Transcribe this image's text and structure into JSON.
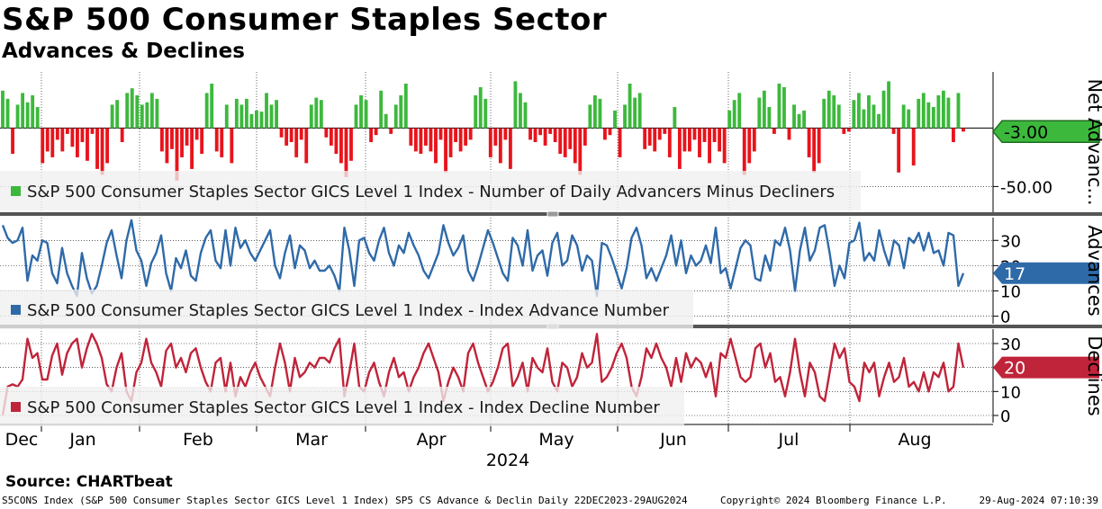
{
  "header": {
    "title": "S&P 500 Consumer Staples Sector",
    "subtitle": "Advances & Declines"
  },
  "footer": {
    "source": "Source: CHARTbeat",
    "index_info": "S5CONS Index (S&P 500 Consumer Staples Sector GICS Level 1 Index) SP5 CS Advance & Declin  Daily 22DEC2023-29AUG2024",
    "copyright": "Copyright© 2024 Bloomberg Finance L.P.",
    "timestamp": "29-Aug-2024 07:10:39"
  },
  "colors": {
    "net_positive": "#3cb93c",
    "net_negative": "#e8141c",
    "advances": "#2f6aa8",
    "declines": "#c0243a",
    "legend_bg": "#efefef",
    "grid": "#000000"
  },
  "chart_data": {
    "type": "mixed",
    "x_axis": {
      "months": [
        "Dec",
        "Jan",
        "Feb",
        "Mar",
        "Apr",
        "May",
        "Jun",
        "Jul",
        "Aug"
      ],
      "year_label": "2024"
    },
    "panels": [
      {
        "id": "net",
        "type": "bar",
        "legend": "S&P 500 Consumer Staples Sector GICS Level 1 Index - Number of Daily Advancers Minus Decliners",
        "axis_title": "Net Advanc...",
        "y_ticks": [
          "-50.00"
        ],
        "y_tick_values": [
          -50
        ],
        "ylim": [
          -72,
          48
        ],
        "last_value": "-3.00",
        "values": [
          32,
          25,
          -22,
          20,
          30,
          22,
          28,
          18,
          -30,
          -20,
          -25,
          -10,
          -20,
          -5,
          -16,
          -25,
          -12,
          -28,
          -5,
          -35,
          -40,
          -30,
          20,
          24,
          -12,
          30,
          34,
          28,
          20,
          22,
          30,
          25,
          -20,
          -30,
          -18,
          -45,
          -25,
          -15,
          -35,
          -10,
          -22,
          30,
          38,
          -20,
          -25,
          20,
          -30,
          25,
          20,
          25,
          12,
          15,
          14,
          30,
          20,
          24,
          -8,
          -15,
          -12,
          -25,
          -10,
          -30,
          20,
          26,
          24,
          -8,
          -15,
          -22,
          -30,
          -42,
          -28,
          20,
          28,
          24,
          -12,
          -6,
          32,
          12,
          -5,
          20,
          28,
          38,
          -15,
          -20,
          -22,
          -15,
          -20,
          -30,
          -10,
          -38,
          -25,
          -12,
          -20,
          -15,
          -10,
          28,
          35,
          25,
          -25,
          -15,
          -30,
          -10,
          -35,
          40,
          30,
          22,
          -10,
          -12,
          -6,
          -15,
          -5,
          -12,
          -22,
          -25,
          -18,
          -30,
          -40,
          -15,
          20,
          28,
          25,
          -10,
          -6,
          15,
          -25,
          20,
          38,
          26,
          30,
          -18,
          -15,
          -20,
          -10,
          -5,
          -25,
          18,
          -35,
          -20,
          -20,
          -10,
          -25,
          -12,
          -30,
          -12,
          -20,
          -30,
          15,
          24,
          30,
          -40,
          -30,
          -20,
          26,
          32,
          18,
          -5,
          38,
          35,
          -10,
          20,
          12,
          15,
          -25,
          -38,
          -30,
          25,
          32,
          28,
          20,
          -5,
          -3,
          24,
          30,
          16,
          28,
          20,
          12,
          32,
          40,
          -5,
          -38,
          20,
          16,
          -32,
          25,
          30,
          22,
          18,
          28,
          32,
          26,
          -12,
          30,
          -3
        ]
      },
      {
        "id": "advances",
        "type": "line",
        "legend": "S&P 500 Consumer Staples Sector GICS Level 1 Index - Index Advance Number",
        "axis_title": "Advances",
        "y_ticks": [
          "30",
          "20",
          "10",
          "0"
        ],
        "y_tick_values": [
          30,
          20,
          10,
          0
        ],
        "ylim": [
          -3,
          39
        ],
        "last_value": "17",
        "values": [
          36,
          31,
          29,
          30,
          35,
          14,
          24,
          22,
          30,
          29,
          17,
          13,
          27,
          17,
          12,
          8,
          25,
          15,
          9,
          12,
          20,
          29,
          34,
          24,
          15,
          30,
          38,
          26,
          22,
          12,
          21,
          25,
          32,
          17,
          10,
          23,
          19,
          26,
          16,
          14,
          25,
          31,
          34,
          22,
          19,
          34,
          20,
          35,
          27,
          30,
          25,
          22,
          26,
          30,
          34,
          20,
          15,
          25,
          32,
          19,
          28,
          26,
          19,
          22,
          18,
          18,
          20,
          16,
          10,
          35,
          26,
          12,
          30,
          31,
          25,
          22,
          30,
          35,
          25,
          20,
          28,
          25,
          33,
          28,
          24,
          18,
          15,
          20,
          25,
          36,
          29,
          24,
          27,
          32,
          18,
          14,
          20,
          27,
          34,
          29,
          23,
          17,
          14,
          31,
          28,
          20,
          34,
          18,
          24,
          26,
          16,
          29,
          33,
          20,
          22,
          32,
          28,
          18,
          24,
          22,
          8,
          29,
          28,
          23,
          17,
          11,
          19,
          31,
          35,
          28,
          15,
          19,
          14,
          19,
          24,
          32,
          20,
          30,
          17,
          24,
          20,
          22,
          28,
          21,
          35,
          17,
          19,
          11,
          19,
          27,
          30,
          28,
          15,
          14,
          24,
          18,
          30,
          28,
          35,
          26,
          10,
          26,
          35,
          22,
          26,
          35,
          36,
          25,
          12,
          20,
          15,
          29,
          30,
          37,
          22,
          25,
          22,
          34,
          26,
          20,
          30,
          28,
          19,
          31,
          29,
          33,
          26,
          33,
          25,
          26,
          20,
          33,
          32,
          12,
          17
        ]
      },
      {
        "id": "declines",
        "type": "line",
        "legend": "S&P 500 Consumer Staples Sector GICS Level 1 Index - Index Decline Number",
        "axis_title": "Declines",
        "y_ticks": [
          "30",
          "20",
          "10",
          "0"
        ],
        "y_tick_values": [
          30,
          20,
          10,
          0
        ],
        "ylim": [
          -3,
          36
        ],
        "last_value": "20",
        "values": [
          0,
          12,
          13,
          12,
          15,
          32,
          24,
          26,
          15,
          15,
          25,
          30,
          17,
          26,
          30,
          32,
          20,
          28,
          34,
          30,
          24,
          13,
          10,
          20,
          26,
          10,
          6,
          18,
          22,
          32,
          22,
          18,
          12,
          27,
          30,
          20,
          24,
          18,
          26,
          28,
          20,
          14,
          10,
          22,
          24,
          10,
          22,
          8,
          16,
          12,
          18,
          22,
          16,
          12,
          8,
          20,
          30,
          22,
          10,
          24,
          16,
          18,
          22,
          20,
          24,
          24,
          22,
          28,
          32,
          8,
          18,
          30,
          12,
          10,
          18,
          22,
          14,
          8,
          18,
          24,
          16,
          18,
          10,
          16,
          20,
          26,
          30,
          24,
          18,
          6,
          14,
          20,
          16,
          10,
          26,
          30,
          22,
          16,
          10,
          14,
          20,
          28,
          30,
          12,
          16,
          22,
          10,
          24,
          20,
          18,
          28,
          14,
          10,
          22,
          20,
          12,
          16,
          26,
          20,
          22,
          34,
          14,
          16,
          20,
          26,
          30,
          24,
          12,
          8,
          16,
          28,
          24,
          30,
          24,
          20,
          12,
          24,
          14,
          26,
          20,
          24,
          22,
          16,
          22,
          8,
          26,
          24,
          32,
          24,
          16,
          14,
          16,
          28,
          30,
          20,
          26,
          14,
          16,
          8,
          18,
          32,
          18,
          8,
          22,
          18,
          8,
          6,
          18,
          30,
          24,
          28,
          14,
          12,
          6,
          22,
          18,
          22,
          8,
          16,
          22,
          14,
          16,
          24,
          12,
          14,
          10,
          18,
          10,
          18,
          16,
          22,
          10,
          12,
          30,
          20
        ]
      }
    ]
  }
}
